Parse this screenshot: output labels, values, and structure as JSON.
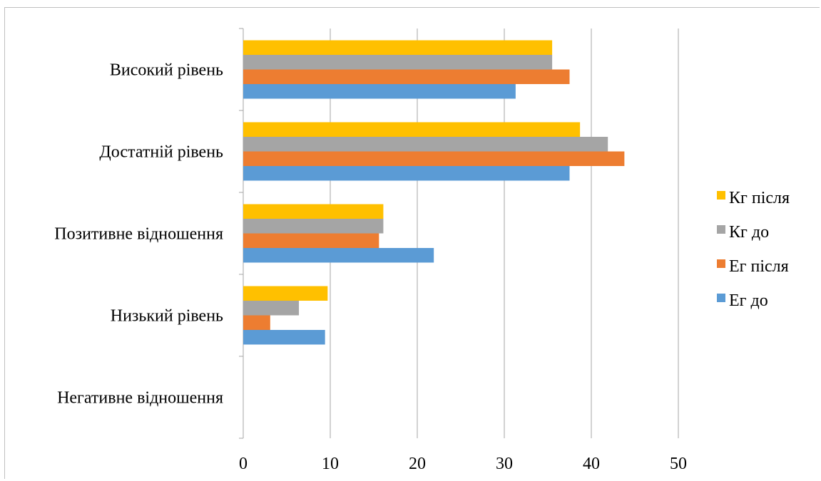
{
  "chart_data": {
    "type": "bar",
    "orientation": "horizontal",
    "categories": [
      "Високий рівень",
      "Достатній рівень",
      "Позитивне відношення",
      "Низький рівень",
      "Негативне відношення"
    ],
    "series": [
      {
        "name": "Кг після",
        "color": "#FFC000",
        "values": [
          35.5,
          38.7,
          16.1,
          9.7,
          0
        ]
      },
      {
        "name": "Кг до",
        "color": "#A5A5A5",
        "values": [
          35.5,
          41.9,
          16.1,
          6.4,
          0
        ]
      },
      {
        "name": "Ег після",
        "color": "#ED7D31",
        "values": [
          37.5,
          43.8,
          15.6,
          3.1,
          0
        ]
      },
      {
        "name": "Ег до",
        "color": "#5B9BD5",
        "values": [
          31.3,
          37.5,
          21.9,
          9.4,
          0
        ]
      }
    ],
    "xlim": [
      0,
      50
    ],
    "xticks": [
      "0",
      "10",
      "20",
      "30",
      "40",
      "50"
    ],
    "grid": "vertical",
    "legend_position": "right"
  }
}
